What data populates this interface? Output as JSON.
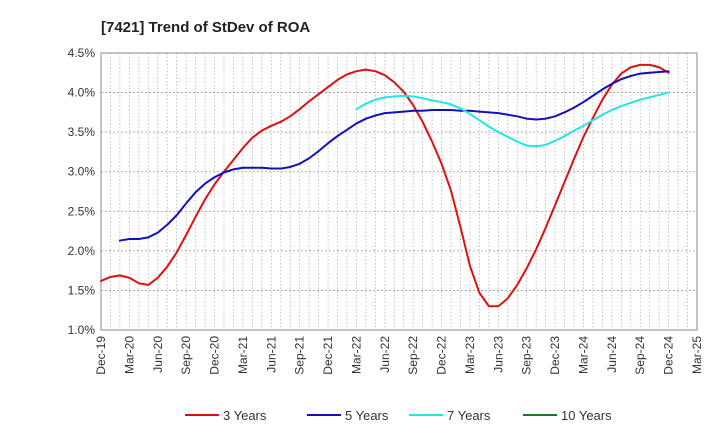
{
  "chart_data": {
    "type": "line",
    "title": "[7421]  Trend of StDev of ROA",
    "xlabel": "",
    "ylabel": "",
    "x_ticks": [
      "Dec-19",
      "Mar-20",
      "Jun-20",
      "Sep-20",
      "Dec-20",
      "Mar-21",
      "Jun-21",
      "Sep-21",
      "Dec-21",
      "Mar-22",
      "Jun-22",
      "Sep-22",
      "Dec-22",
      "Mar-23",
      "Jun-23",
      "Sep-23",
      "Dec-23",
      "Mar-24",
      "Jun-24",
      "Sep-24",
      "Dec-24",
      "Mar-25"
    ],
    "y_ticks": [
      "1.0%",
      "1.5%",
      "2.0%",
      "2.5%",
      "3.0%",
      "3.5%",
      "4.0%",
      "4.5%"
    ],
    "ylim": [
      1.0,
      4.5
    ],
    "y_unit": "%",
    "grid": true,
    "legend_position": "bottom",
    "series": [
      {
        "name": "3 Years",
        "color": "#dd1111",
        "points": [
          [
            "Dec-19",
            1.62
          ],
          [
            "Jan-20",
            1.67
          ],
          [
            "Feb-20",
            1.69
          ],
          [
            "Mar-20",
            1.66
          ],
          [
            "Apr-20",
            1.59
          ],
          [
            "May-20",
            1.57
          ],
          [
            "Jun-20",
            1.66
          ],
          [
            "Jul-20",
            1.8
          ],
          [
            "Aug-20",
            1.98
          ],
          [
            "Sep-20",
            2.2
          ],
          [
            "Oct-20",
            2.43
          ],
          [
            "Nov-20",
            2.65
          ],
          [
            "Dec-20",
            2.84
          ],
          [
            "Jan-21",
            3.0
          ],
          [
            "Feb-21",
            3.15
          ],
          [
            "Mar-21",
            3.3
          ],
          [
            "Apr-21",
            3.43
          ],
          [
            "May-21",
            3.52
          ],
          [
            "Jun-21",
            3.58
          ],
          [
            "Jul-21",
            3.63
          ],
          [
            "Aug-21",
            3.7
          ],
          [
            "Sep-21",
            3.79
          ],
          [
            "Oct-21",
            3.89
          ],
          [
            "Nov-21",
            3.98
          ],
          [
            "Dec-21",
            4.07
          ],
          [
            "Jan-22",
            4.16
          ],
          [
            "Feb-22",
            4.23
          ],
          [
            "Mar-22",
            4.27
          ],
          [
            "Apr-22",
            4.29
          ],
          [
            "May-22",
            4.27
          ],
          [
            "Jun-22",
            4.22
          ],
          [
            "Jul-22",
            4.13
          ],
          [
            "Aug-22",
            4.01
          ],
          [
            "Sep-22",
            3.84
          ],
          [
            "Oct-22",
            3.63
          ],
          [
            "Nov-22",
            3.38
          ],
          [
            "Dec-22",
            3.1
          ],
          [
            "Jan-23",
            2.76
          ],
          [
            "Feb-23",
            2.3
          ],
          [
            "Mar-23",
            1.81
          ],
          [
            "Apr-23",
            1.47
          ],
          [
            "May-23",
            1.3
          ],
          [
            "Jun-23",
            1.3
          ],
          [
            "Jul-23",
            1.4
          ],
          [
            "Aug-23",
            1.57
          ],
          [
            "Sep-23",
            1.78
          ],
          [
            "Oct-23",
            2.02
          ],
          [
            "Nov-23",
            2.29
          ],
          [
            "Dec-23",
            2.58
          ],
          [
            "Jan-24",
            2.87
          ],
          [
            "Feb-24",
            3.16
          ],
          [
            "Mar-24",
            3.44
          ],
          [
            "Apr-24",
            3.68
          ],
          [
            "May-24",
            3.91
          ],
          [
            "Jun-24",
            4.1
          ],
          [
            "Jul-24",
            4.24
          ],
          [
            "Aug-24",
            4.32
          ],
          [
            "Sep-24",
            4.35
          ],
          [
            "Oct-24",
            4.35
          ],
          [
            "Nov-24",
            4.32
          ],
          [
            "Dec-24",
            4.25
          ]
        ]
      },
      {
        "name": "5 Years",
        "color": "#1111bb",
        "points": [
          [
            "Feb-20",
            2.13
          ],
          [
            "Mar-20",
            2.15
          ],
          [
            "Apr-20",
            2.15
          ],
          [
            "May-20",
            2.17
          ],
          [
            "Jun-20",
            2.23
          ],
          [
            "Jul-20",
            2.33
          ],
          [
            "Aug-20",
            2.45
          ],
          [
            "Sep-20",
            2.6
          ],
          [
            "Oct-20",
            2.74
          ],
          [
            "Nov-20",
            2.85
          ],
          [
            "Dec-20",
            2.93
          ],
          [
            "Jan-21",
            2.99
          ],
          [
            "Feb-21",
            3.03
          ],
          [
            "Mar-21",
            3.05
          ],
          [
            "Apr-21",
            3.05
          ],
          [
            "May-21",
            3.05
          ],
          [
            "Jun-21",
            3.04
          ],
          [
            "Jul-21",
            3.04
          ],
          [
            "Aug-21",
            3.06
          ],
          [
            "Sep-21",
            3.1
          ],
          [
            "Oct-21",
            3.17
          ],
          [
            "Nov-21",
            3.26
          ],
          [
            "Dec-21",
            3.36
          ],
          [
            "Jan-22",
            3.45
          ],
          [
            "Feb-22",
            3.53
          ],
          [
            "Mar-22",
            3.61
          ],
          [
            "Apr-22",
            3.67
          ],
          [
            "May-22",
            3.71
          ],
          [
            "Jun-22",
            3.74
          ],
          [
            "Jul-22",
            3.75
          ],
          [
            "Aug-22",
            3.76
          ],
          [
            "Sep-22",
            3.77
          ],
          [
            "Oct-22",
            3.77
          ],
          [
            "Nov-22",
            3.78
          ],
          [
            "Dec-22",
            3.78
          ],
          [
            "Jan-23",
            3.78
          ],
          [
            "Feb-23",
            3.77
          ],
          [
            "Mar-23",
            3.77
          ],
          [
            "Apr-23",
            3.76
          ],
          [
            "May-23",
            3.75
          ],
          [
            "Jun-23",
            3.74
          ],
          [
            "Jul-23",
            3.72
          ],
          [
            "Aug-23",
            3.7
          ],
          [
            "Sep-23",
            3.67
          ],
          [
            "Oct-23",
            3.66
          ],
          [
            "Nov-23",
            3.67
          ],
          [
            "Dec-23",
            3.7
          ],
          [
            "Jan-24",
            3.75
          ],
          [
            "Feb-24",
            3.81
          ],
          [
            "Mar-24",
            3.88
          ],
          [
            "Apr-24",
            3.96
          ],
          [
            "May-24",
            4.04
          ],
          [
            "Jun-24",
            4.11
          ],
          [
            "Jul-24",
            4.17
          ],
          [
            "Aug-24",
            4.21
          ],
          [
            "Sep-24",
            4.24
          ],
          [
            "Oct-24",
            4.25
          ],
          [
            "Nov-24",
            4.26
          ],
          [
            "Dec-24",
            4.27
          ]
        ]
      },
      {
        "name": "7 Years",
        "color": "#22e5e5",
        "points": [
          [
            "Mar-22",
            3.79
          ],
          [
            "Apr-22",
            3.86
          ],
          [
            "May-22",
            3.91
          ],
          [
            "Jun-22",
            3.94
          ],
          [
            "Jul-22",
            3.95
          ],
          [
            "Aug-22",
            3.96
          ],
          [
            "Sep-22",
            3.95
          ],
          [
            "Oct-22",
            3.93
          ],
          [
            "Nov-22",
            3.9
          ],
          [
            "Dec-22",
            3.88
          ],
          [
            "Jan-23",
            3.85
          ],
          [
            "Feb-23",
            3.8
          ],
          [
            "Mar-23",
            3.73
          ],
          [
            "Apr-23",
            3.65
          ],
          [
            "May-23",
            3.57
          ],
          [
            "Jun-23",
            3.5
          ],
          [
            "Jul-23",
            3.44
          ],
          [
            "Aug-23",
            3.38
          ],
          [
            "Sep-23",
            3.33
          ],
          [
            "Oct-23",
            3.32
          ],
          [
            "Nov-23",
            3.34
          ],
          [
            "Dec-23",
            3.39
          ],
          [
            "Jan-24",
            3.45
          ],
          [
            "Feb-24",
            3.52
          ],
          [
            "Mar-24",
            3.58
          ],
          [
            "Apr-24",
            3.65
          ],
          [
            "May-24",
            3.72
          ],
          [
            "Jun-24",
            3.78
          ],
          [
            "Jul-24",
            3.83
          ],
          [
            "Aug-24",
            3.87
          ],
          [
            "Sep-24",
            3.91
          ],
          [
            "Oct-24",
            3.94
          ],
          [
            "Nov-24",
            3.97
          ],
          [
            "Dec-24",
            4.0
          ]
        ]
      },
      {
        "name": "10 Years",
        "color": "#1a7a1a",
        "points": []
      }
    ]
  }
}
